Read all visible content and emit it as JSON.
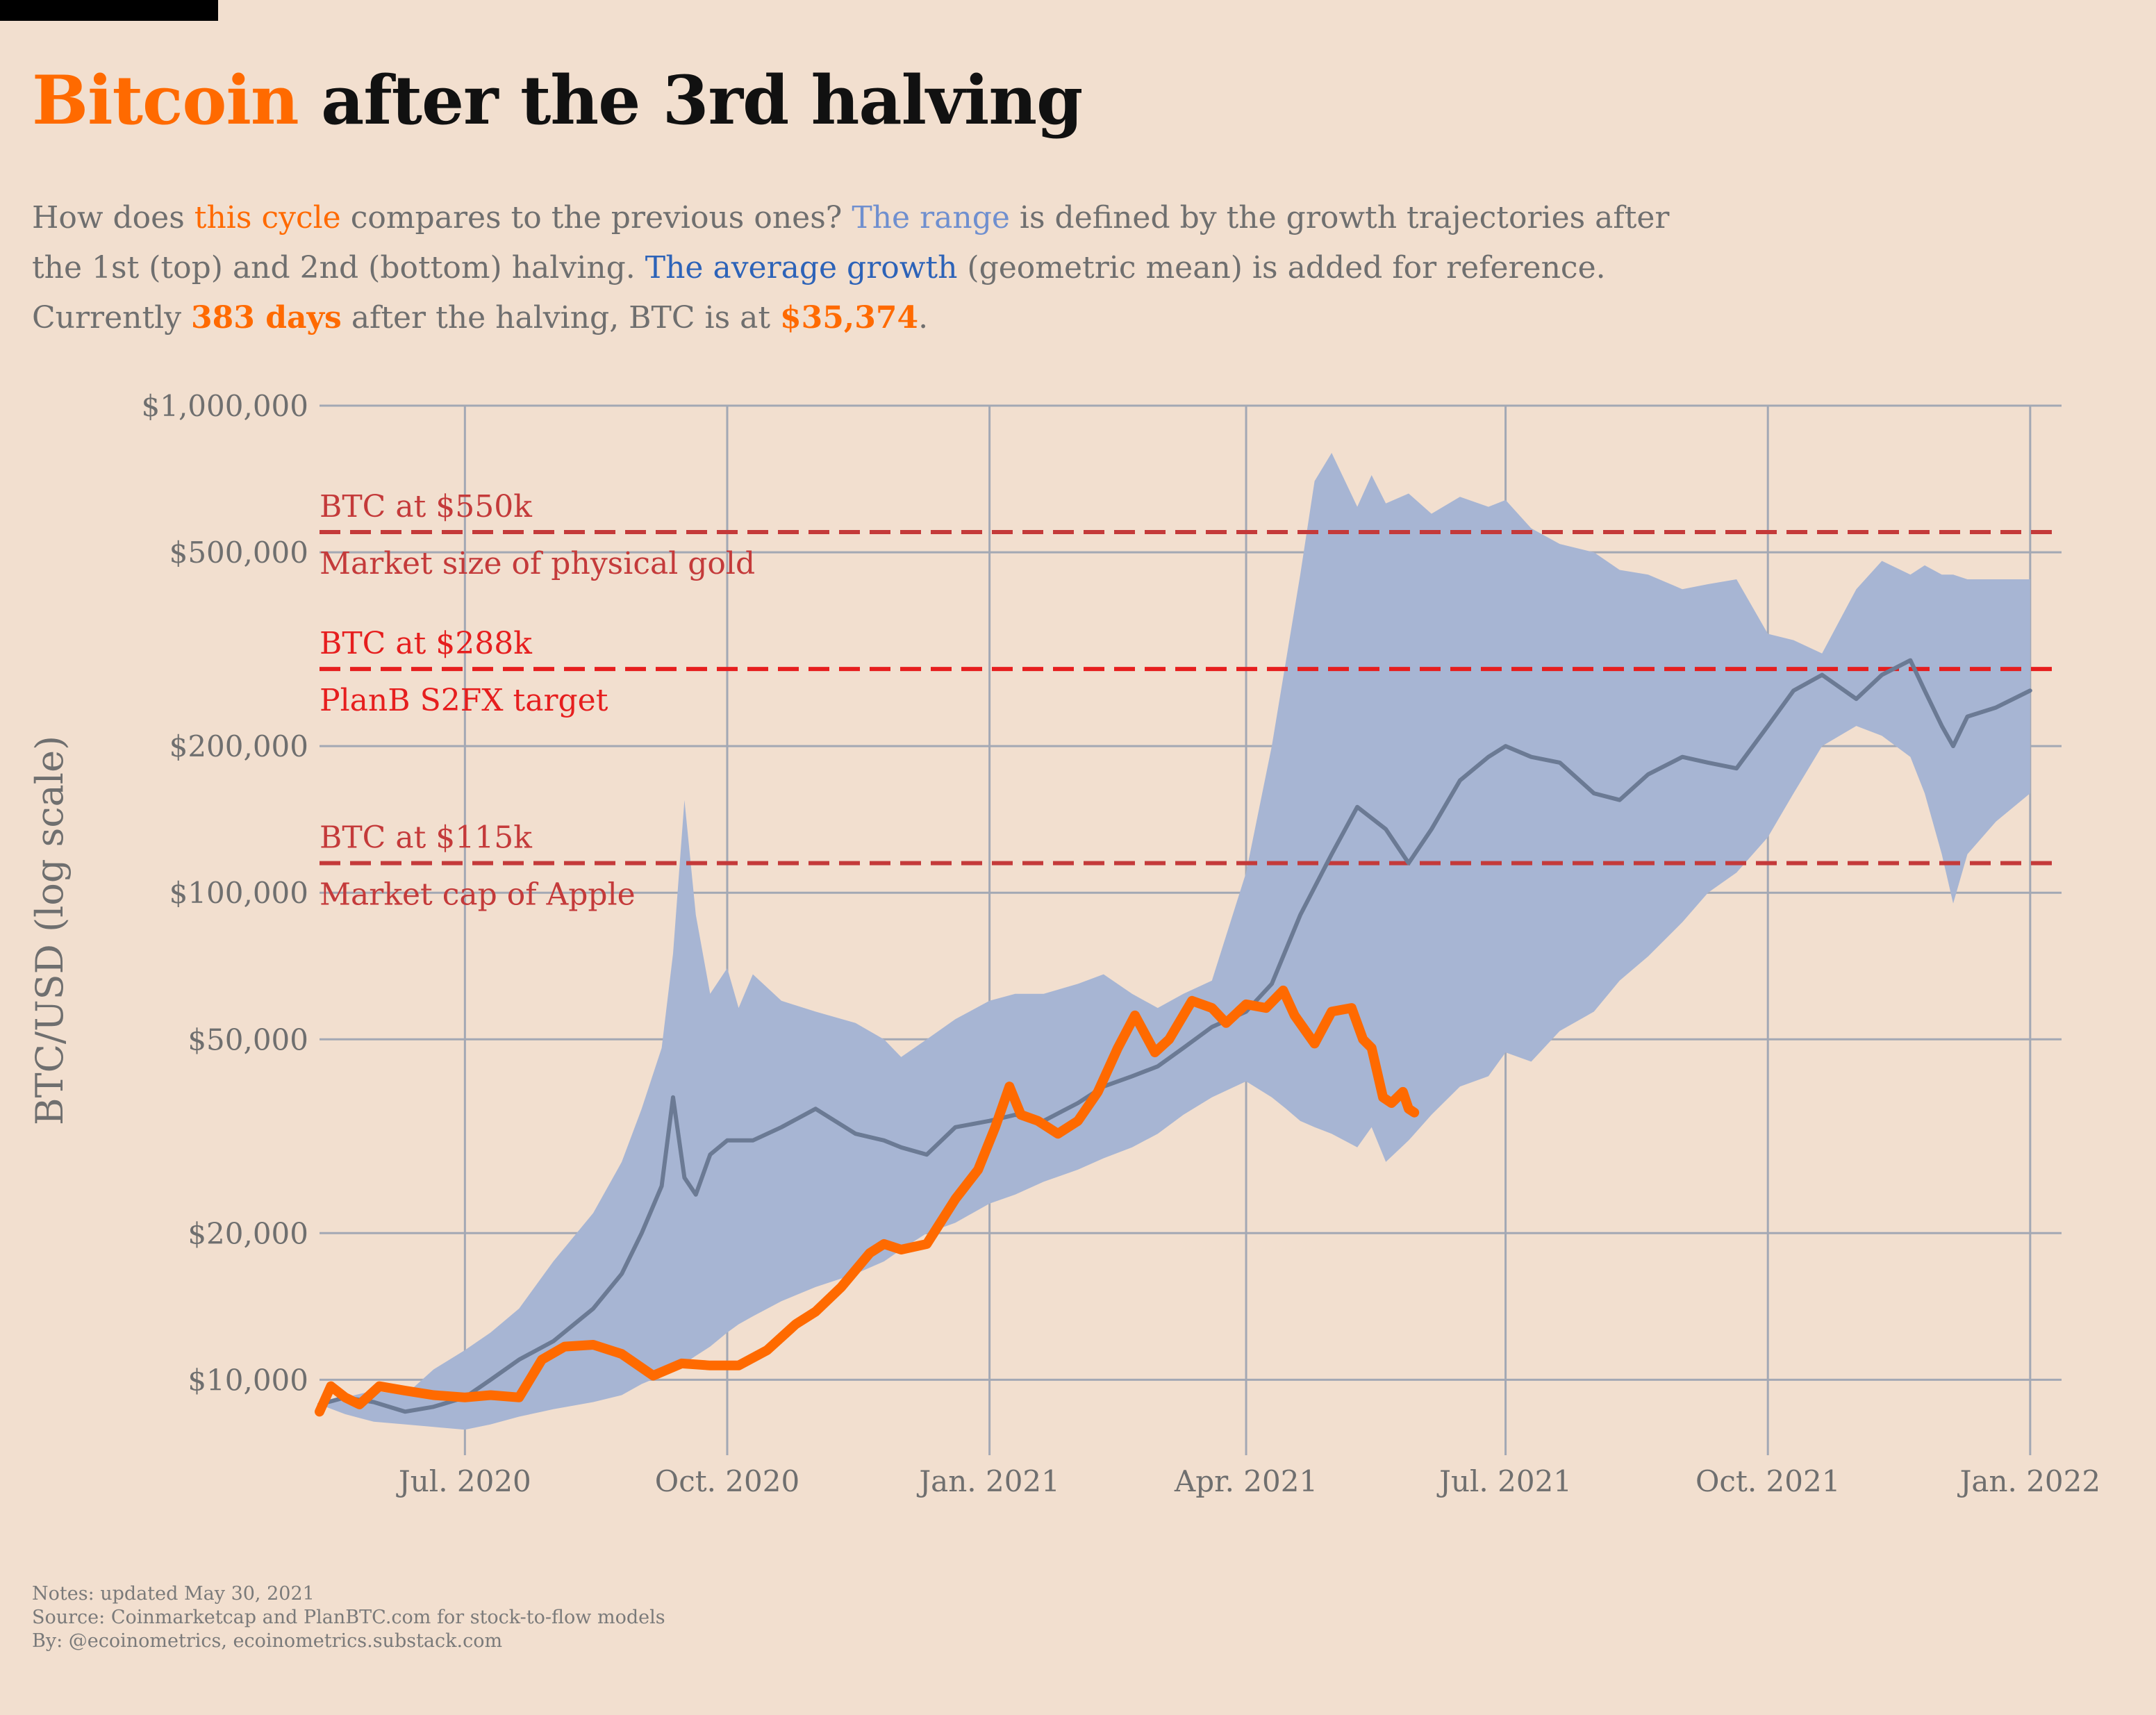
{
  "title": {
    "accent": "Bitcoin",
    "rest": " after the 3rd halving"
  },
  "subtitle": {
    "l1_a": "How does ",
    "l1_cycle": "this cycle",
    "l1_b": " compares to the previous ones? ",
    "l1_range": "The range",
    "l1_c": " is defined by the growth trajectories after",
    "l2_a": "the 1st (top) and 2nd (bottom) halving. ",
    "l2_avg": "The average growth",
    "l2_b": " (geometric mean) is added for reference.",
    "l3_a": "Currently ",
    "l3_days": "383 days",
    "l3_b": " after the halving, BTC is at ",
    "l3_price": "$35,374",
    "l3_c": "."
  },
  "notes": {
    "updated": "Notes: updated May 30, 2021",
    "source": "Source: Coinmarketcap and PlanBTC.com for stock-to-flow models",
    "by": "By: @ecoinometrics, ecoinometrics.substack.com"
  },
  "colors": {
    "background": "#f2dfcf",
    "accent": "#ff6a00",
    "range": "#a7b5d3",
    "average": "#6b7a94",
    "grid": "#a3a8b4",
    "refline_dark": "#c43a3a",
    "refline_bright": "#e61e1e",
    "text_muted": "#6f6f6f"
  },
  "chart_data": {
    "type": "line",
    "ylabel": "BTC/USD (log scale)",
    "y_scale": "log",
    "ylim": [
      7000,
      1000000
    ],
    "xlim": [
      "2020-05-11",
      "2022-01-12"
    ],
    "grid": true,
    "y_ticks": [
      {
        "value": 10000,
        "label": "$10,000"
      },
      {
        "value": 20000,
        "label": "$20,000"
      },
      {
        "value": 50000,
        "label": "$50,000"
      },
      {
        "value": 100000,
        "label": "$100,000"
      },
      {
        "value": 200000,
        "label": "$200,000"
      },
      {
        "value": 500000,
        "label": "$500,000"
      },
      {
        "value": 1000000,
        "label": "$1,000,000"
      }
    ],
    "x_ticks": [
      {
        "date": "2020-07-01",
        "label": "Jul. 2020"
      },
      {
        "date": "2020-10-01",
        "label": "Oct. 2020"
      },
      {
        "date": "2021-01-01",
        "label": "Jan. 2021"
      },
      {
        "date": "2021-04-01",
        "label": "Apr. 2021"
      },
      {
        "date": "2021-07-01",
        "label": "Jul. 2021"
      },
      {
        "date": "2021-10-01",
        "label": "Oct. 2021"
      },
      {
        "date": "2022-01-01",
        "label": "Jan. 2022"
      }
    ],
    "reference_lines": [
      {
        "value": 550000,
        "label_top": "BTC at $550k",
        "label_bottom": "Market size of physical gold",
        "color": "#c43a3a"
      },
      {
        "value": 288000,
        "label_top": "BTC at $288k",
        "label_bottom": "PlanB S2FX target",
        "color": "#e61e1e"
      },
      {
        "value": 115000,
        "label_top": "BTC at $115k",
        "label_bottom": "Market cap of Apple",
        "color": "#c43a3a"
      }
    ],
    "series": [
      {
        "role": "range",
        "x": [
          "2020-05-11",
          "2020-05-20",
          "2020-05-30",
          "2020-06-10",
          "2020-06-20",
          "2020-07-01",
          "2020-07-10",
          "2020-07-20",
          "2020-08-01",
          "2020-08-15",
          "2020-08-25",
          "2020-09-01",
          "2020-09-08",
          "2020-09-12",
          "2020-09-16",
          "2020-09-20",
          "2020-09-25",
          "2020-10-01",
          "2020-10-05",
          "2020-10-10",
          "2020-10-20",
          "2020-11-01",
          "2020-11-15",
          "2020-11-25",
          "2020-12-01",
          "2020-12-10",
          "2020-12-20",
          "2021-01-01",
          "2021-01-10",
          "2021-01-20",
          "2021-02-01",
          "2021-02-10",
          "2021-02-20",
          "2021-03-01",
          "2021-03-10",
          "2021-03-20",
          "2021-04-01",
          "2021-04-10",
          "2021-04-15",
          "2021-04-20",
          "2021-04-25",
          "2021-05-01",
          "2021-05-10",
          "2021-05-15",
          "2021-05-20",
          "2021-05-28",
          "2021-06-05",
          "2021-06-15",
          "2021-06-25",
          "2021-07-01",
          "2021-07-10",
          "2021-07-20",
          "2021-08-01",
          "2021-08-10",
          "2021-08-20",
          "2021-09-01",
          "2021-09-10",
          "2021-09-20",
          "2021-10-01",
          "2021-10-10",
          "2021-10-20",
          "2021-11-01",
          "2021-11-10",
          "2021-11-20",
          "2021-11-25",
          "2021-12-01",
          "2021-12-05",
          "2021-12-10",
          "2021-12-20",
          "2022-01-01"
        ],
        "upper": [
          9000,
          9200,
          9500,
          9300,
          10500,
          11500,
          12500,
          14000,
          17500,
          22000,
          28000,
          36000,
          48000,
          75000,
          155000,
          90000,
          62000,
          70000,
          58000,
          68000,
          60000,
          57000,
          54000,
          50000,
          46000,
          50000,
          55000,
          60000,
          62000,
          62000,
          65000,
          68000,
          62000,
          58000,
          62000,
          66000,
          110000,
          200000,
          300000,
          450000,
          700000,
          800000,
          620000,
          720000,
          630000,
          660000,
          600000,
          650000,
          620000,
          640000,
          560000,
          520000,
          500000,
          460000,
          450000,
          420000,
          430000,
          440000,
          340000,
          330000,
          310000,
          420000,
          480000,
          450000,
          470000,
          450000,
          450000,
          440000,
          440000,
          440000
        ],
        "lower": [
          8900,
          8500,
          8200,
          8100,
          8000,
          7900,
          8100,
          8400,
          8700,
          9000,
          9300,
          9800,
          10200,
          10600,
          10800,
          11200,
          11700,
          12500,
          13000,
          13500,
          14500,
          15500,
          16500,
          17500,
          18500,
          20000,
          21000,
          23000,
          24000,
          25500,
          27000,
          28500,
          30000,
          32000,
          35000,
          38000,
          41000,
          38000,
          36000,
          34000,
          33000,
          32000,
          30000,
          33000,
          28000,
          31000,
          35000,
          40000,
          42000,
          47000,
          45000,
          52000,
          57000,
          66000,
          74000,
          87000,
          100000,
          110000,
          130000,
          160000,
          200000,
          220000,
          210000,
          190000,
          160000,
          120000,
          95000,
          120000,
          140000,
          160000
        ]
      },
      {
        "name": "The average growth",
        "role": "average",
        "x": [
          "2020-05-11",
          "2020-05-20",
          "2020-05-30",
          "2020-06-10",
          "2020-06-20",
          "2020-07-01",
          "2020-07-10",
          "2020-07-20",
          "2020-08-01",
          "2020-08-15",
          "2020-08-25",
          "2020-09-01",
          "2020-09-08",
          "2020-09-12",
          "2020-09-16",
          "2020-09-20",
          "2020-09-25",
          "2020-10-01",
          "2020-10-10",
          "2020-10-20",
          "2020-11-01",
          "2020-11-15",
          "2020-11-25",
          "2020-12-01",
          "2020-12-10",
          "2020-12-20",
          "2021-01-01",
          "2021-01-10",
          "2021-01-20",
          "2021-02-01",
          "2021-02-10",
          "2021-02-20",
          "2021-03-01",
          "2021-03-10",
          "2021-03-20",
          "2021-04-01",
          "2021-04-10",
          "2021-04-20",
          "2021-05-01",
          "2021-05-10",
          "2021-05-20",
          "2021-05-28",
          "2021-06-05",
          "2021-06-15",
          "2021-06-25",
          "2021-07-01",
          "2021-07-10",
          "2021-07-20",
          "2021-08-01",
          "2021-08-10",
          "2021-08-20",
          "2021-09-01",
          "2021-09-10",
          "2021-09-20",
          "2021-10-01",
          "2021-10-10",
          "2021-10-20",
          "2021-11-01",
          "2021-11-10",
          "2021-11-20",
          "2021-11-25",
          "2021-12-01",
          "2021-12-05",
          "2021-12-10",
          "2021-12-20",
          "2022-01-01"
        ],
        "values": [
          8900,
          9200,
          9000,
          8600,
          8800,
          9200,
          10000,
          11000,
          12000,
          14000,
          16500,
          20000,
          25000,
          38000,
          26000,
          24000,
          29000,
          31000,
          31000,
          33000,
          36000,
          32000,
          31000,
          30000,
          29000,
          33000,
          34000,
          35000,
          34000,
          37000,
          40000,
          42000,
          44000,
          48000,
          53000,
          57000,
          65000,
          90000,
          120000,
          150000,
          135000,
          115000,
          135000,
          170000,
          190000,
          200000,
          190000,
          185000,
          160000,
          155000,
          175000,
          190000,
          185000,
          180000,
          220000,
          260000,
          280000,
          250000,
          280000,
          300000,
          260000,
          220000,
          200000,
          230000,
          240000,
          260000
        ]
      },
      {
        "name": "this cycle",
        "role": "current",
        "x": [
          "2020-05-11",
          "2020-05-15",
          "2020-05-20",
          "2020-05-25",
          "2020-06-01",
          "2020-06-10",
          "2020-06-20",
          "2020-07-01",
          "2020-07-10",
          "2020-07-20",
          "2020-07-28",
          "2020-08-05",
          "2020-08-15",
          "2020-08-25",
          "2020-09-05",
          "2020-09-15",
          "2020-09-25",
          "2020-10-05",
          "2020-10-15",
          "2020-10-25",
          "2020-11-01",
          "2020-11-10",
          "2020-11-20",
          "2020-11-25",
          "2020-12-01",
          "2020-12-10",
          "2020-12-20",
          "2020-12-28",
          "2021-01-03",
          "2021-01-08",
          "2021-01-12",
          "2021-01-18",
          "2021-01-25",
          "2021-02-01",
          "2021-02-08",
          "2021-02-15",
          "2021-02-21",
          "2021-02-28",
          "2021-03-05",
          "2021-03-13",
          "2021-03-20",
          "2021-03-25",
          "2021-04-01",
          "2021-04-08",
          "2021-04-14",
          "2021-04-18",
          "2021-04-25",
          "2021-05-01",
          "2021-05-08",
          "2021-05-12",
          "2021-05-15",
          "2021-05-19",
          "2021-05-22",
          "2021-05-26",
          "2021-05-28",
          "2021-05-30"
        ],
        "values": [
          8600,
          9700,
          9200,
          8900,
          9700,
          9500,
          9300,
          9200,
          9300,
          9200,
          11000,
          11700,
          11800,
          11300,
          10200,
          10800,
          10700,
          10700,
          11500,
          13000,
          13800,
          15500,
          18200,
          19000,
          18500,
          19000,
          23500,
          27000,
          33000,
          40000,
          35000,
          34000,
          32000,
          34000,
          39000,
          48000,
          56000,
          47000,
          50000,
          60000,
          58000,
          54000,
          59000,
          58000,
          63000,
          56000,
          49000,
          57000,
          58000,
          50000,
          48000,
          38000,
          37000,
          39000,
          36000,
          35374
        ]
      }
    ]
  }
}
